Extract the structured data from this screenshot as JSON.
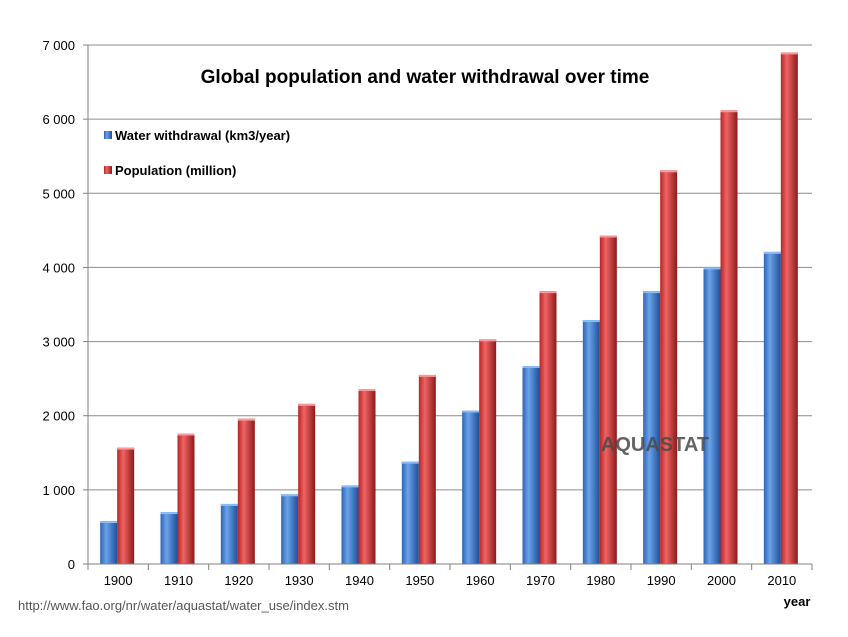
{
  "chart_data": {
    "type": "bar",
    "title": "Global population and water withdrawal over time",
    "xlabel": "year",
    "ylabel": "",
    "ylim": [
      0,
      7000
    ],
    "yticks": [
      0,
      1000,
      2000,
      3000,
      4000,
      5000,
      6000,
      7000
    ],
    "ytick_labels": [
      "0",
      "1 000",
      "2 000",
      "3 000",
      "4 000",
      "5 000",
      "6 000",
      "7 000"
    ],
    "categories": [
      "1900",
      "1910",
      "1920",
      "1930",
      "1940",
      "1950",
      "1960",
      "1970",
      "1980",
      "1990",
      "2000",
      "2010"
    ],
    "series": [
      {
        "name": "Water withdrawal (km3/year)",
        "color": "#3f7fd0",
        "values": [
          580,
          700,
          810,
          940,
          1060,
          1380,
          2070,
          2670,
          3290,
          3680,
          4000,
          4210
        ]
      },
      {
        "name": "Population (million)",
        "color": "#d63838",
        "values": [
          1570,
          1760,
          1960,
          2160,
          2360,
          2550,
          3030,
          3680,
          4430,
          5310,
          6120,
          6900
        ]
      }
    ],
    "legend_position": "top-left",
    "grid": true,
    "watermark": "AQUASTAT"
  },
  "source_text": "http://www.fao.org/nr/water/aquastat/water_use/index.stm",
  "colors": {
    "blue_dark": "#1f4f9a",
    "blue_light": "#6aa3e8",
    "red_dark": "#8e1a1a",
    "red_light": "#f06a6a"
  }
}
